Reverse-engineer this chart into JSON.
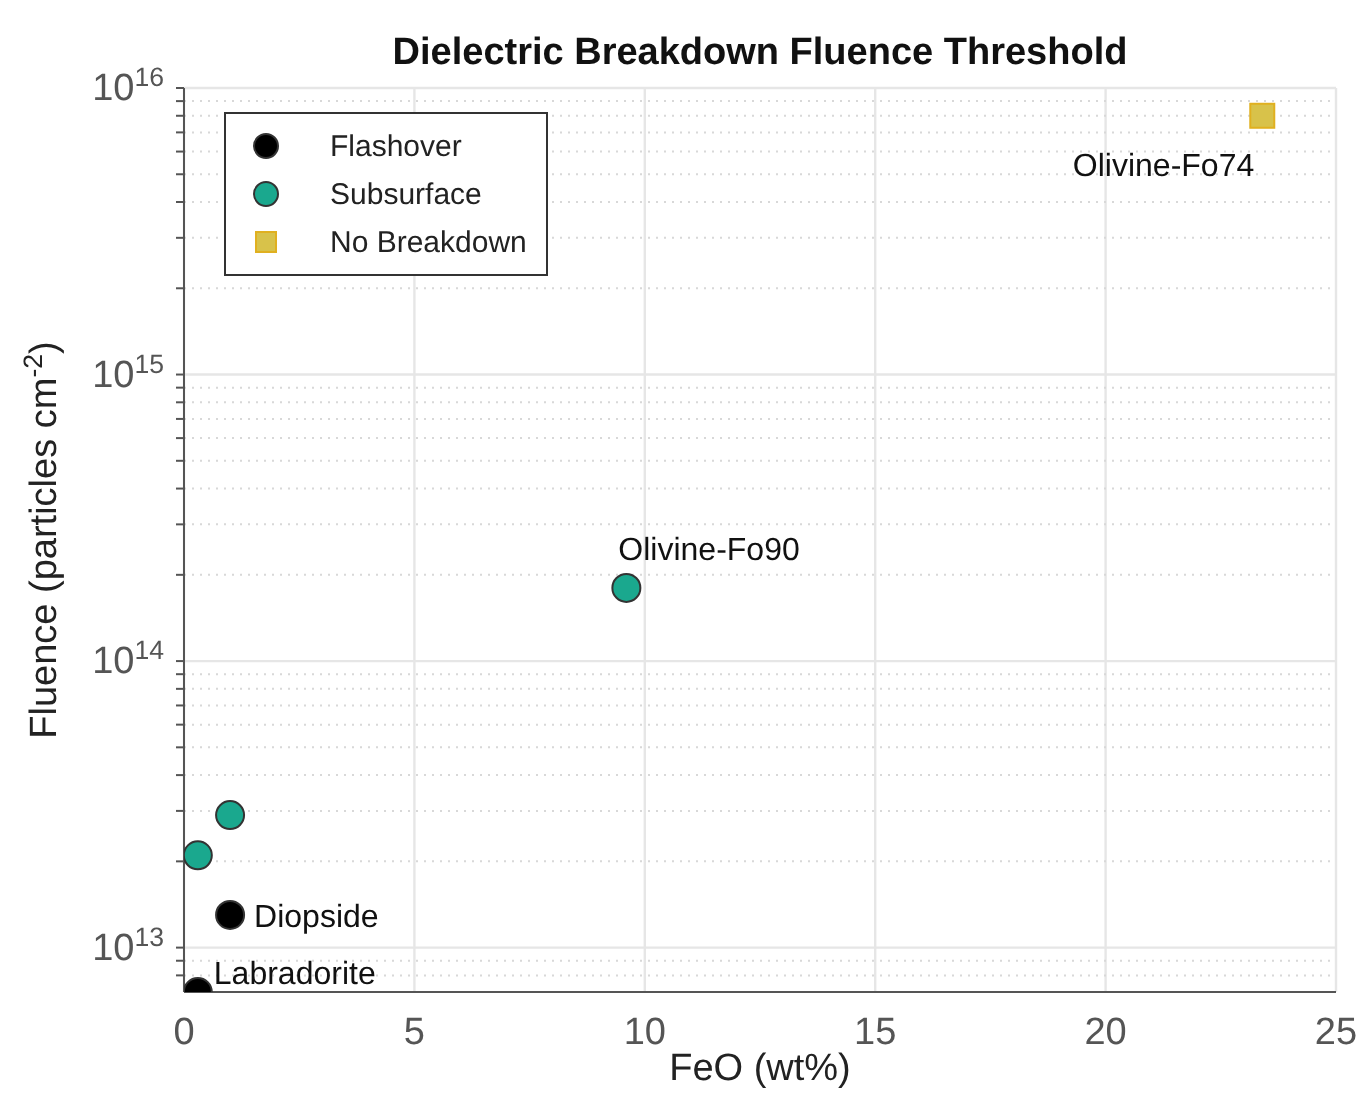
{
  "chart_data": {
    "type": "scatter",
    "title": "Dielectric Breakdown Fluence Threshold",
    "xlabel": "FeO (wt%)",
    "ylabel": "Fluence (particles cm$^{-2}$)",
    "series": [
      {
        "name": "Flashover",
        "color": "#000000",
        "marker": "circle",
        "x": [
          0.3,
          1.0
        ],
        "values": [
          7000000000000.0,
          13000000000000.0
        ]
      },
      {
        "name": "Subsurface",
        "color": "#1aa88e",
        "marker": "circle",
        "x": [
          0.3,
          1.0,
          9.6
        ],
        "values": [
          21000000000000.0,
          29000000000000.0,
          180000000000000.0
        ]
      },
      {
        "name": "No Breakdown",
        "color": "#d8c24a",
        "marker": "square",
        "x": [
          23.4
        ],
        "values": [
          8000000000000000.0
        ]
      }
    ],
    "annotations": [
      {
        "text": "Labradorite",
        "x": 0.3,
        "y": 7000000000000.0
      },
      {
        "text": "Diopside",
        "x": 1.0,
        "y": 13000000000000.0
      },
      {
        "text": "Olivine-Fo90",
        "x": 9.6,
        "y": 180000000000000.0
      },
      {
        "text": "Olivine-Fo74",
        "x": 23.4,
        "y": 8000000000000000.0
      }
    ],
    "xlim": [
      0,
      25
    ],
    "xticks": [
      0,
      5,
      10,
      15,
      20,
      25
    ],
    "ylim": [
      7000000000000.0,
      1e+16
    ],
    "log": true,
    "yticks": [
      {
        "value": 8000000000000.0,
        "label": null
      },
      {
        "value": 9000000000000.0,
        "label": null
      },
      {
        "value": 10000000000000.0,
        "label": "10$^{13}$"
      },
      {
        "value": 20000000000000.0,
        "label": null
      },
      {
        "value": 30000000000000.0,
        "label": null
      },
      {
        "value": 40000000000000.0,
        "label": null
      },
      {
        "value": 50000000000000.0,
        "label": null
      },
      {
        "value": 60000000000000.0,
        "label": null
      },
      {
        "value": 70000000000000.0,
        "label": null
      },
      {
        "value": 80000000000000.0,
        "label": null
      },
      {
        "value": 90000000000000.0,
        "label": null
      },
      {
        "value": 100000000000000.0,
        "label": "10$^{14}$"
      },
      {
        "value": 200000000000000.0,
        "label": null
      },
      {
        "value": 300000000000000.0,
        "label": null
      },
      {
        "value": 400000000000000.0,
        "label": null
      },
      {
        "value": 500000000000000.0,
        "label": null
      },
      {
        "value": 600000000000000.0,
        "label": null
      },
      {
        "value": 700000000000000.0,
        "label": null
      },
      {
        "value": 800000000000000.0,
        "label": null
      },
      {
        "value": 900000000000000.0,
        "label": null
      },
      {
        "value": 1000000000000000.0,
        "label": "10$^{15}$"
      },
      {
        "value": 2000000000000000.0,
        "label": null
      },
      {
        "value": 3000000000000000.0,
        "label": null
      },
      {
        "value": 4000000000000000.0,
        "label": null
      },
      {
        "value": 5000000000000000.0,
        "label": null
      },
      {
        "value": 6000000000000000.0,
        "label": null
      },
      {
        "value": 7000000000000000.0,
        "label": null
      },
      {
        "value": 8000000000000000.0,
        "label": null
      },
      {
        "value": 9000000000000000.0,
        "label": null
      },
      {
        "value": 1e+16,
        "label": "10$^{16}$"
      }
    ],
    "grid": true,
    "legend": "top left"
  }
}
